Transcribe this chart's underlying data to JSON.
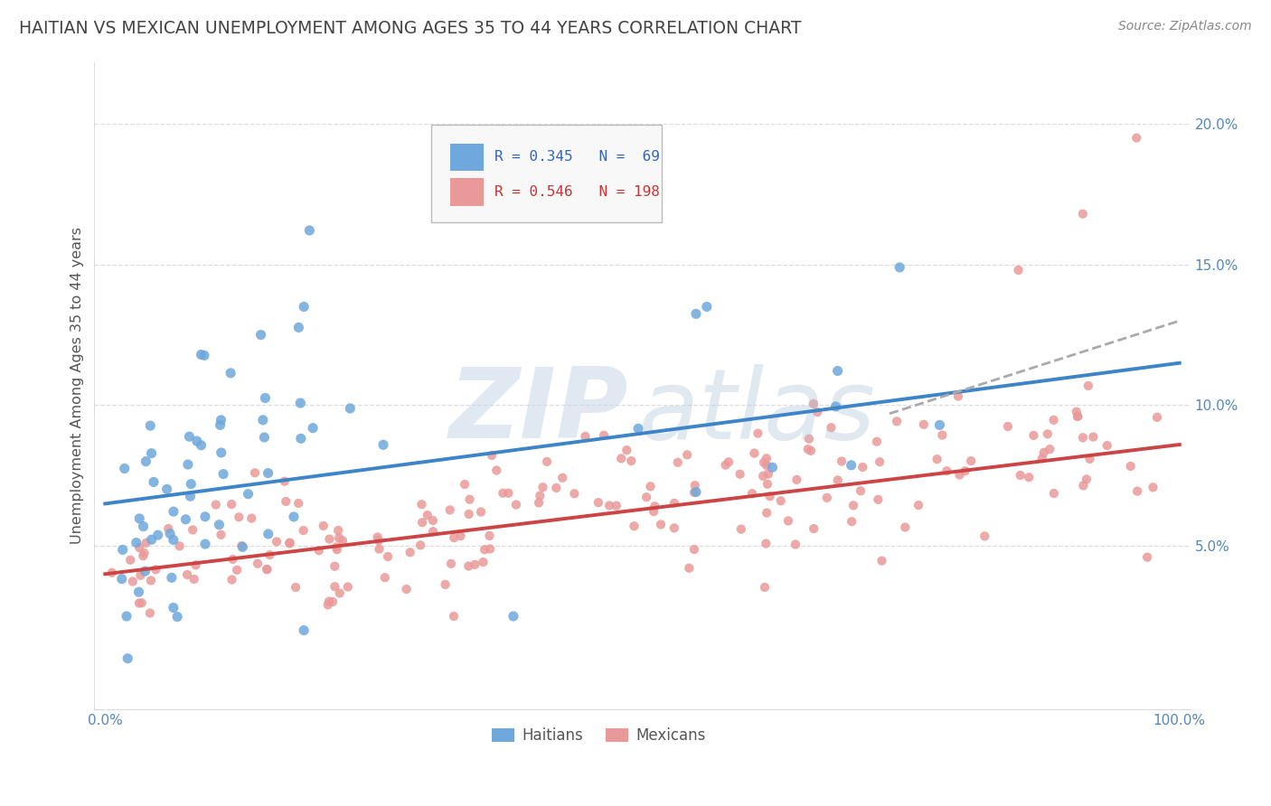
{
  "title": "HAITIAN VS MEXICAN UNEMPLOYMENT AMONG AGES 35 TO 44 YEARS CORRELATION CHART",
  "source": "Source: ZipAtlas.com",
  "ylabel": "Unemployment Among Ages 35 to 44 years",
  "haitian_color": "#6fa8dc",
  "mexican_color": "#ea9999",
  "haitian_line_color": "#3d85c8",
  "mexican_line_color": "#cc4444",
  "dashed_line_color": "#aaaaaa",
  "background_color": "#ffffff",
  "grid_color": "#dddddd",
  "legend_box_color": "#f3f3f3",
  "legend_border_color": "#cccccc",
  "title_color": "#444444",
  "source_color": "#888888",
  "tick_color": "#5588bb",
  "ylabel_color": "#555555"
}
